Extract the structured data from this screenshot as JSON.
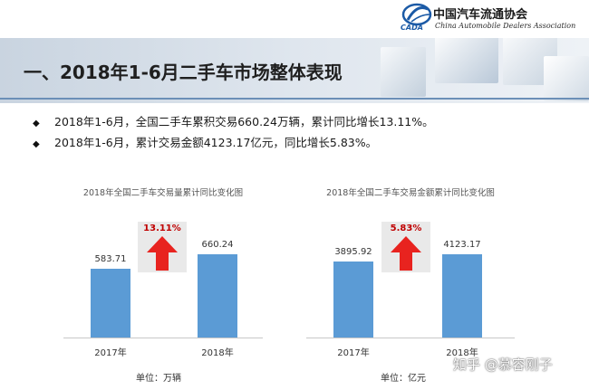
{
  "logo": {
    "name_zh": "中国汽车流通协会",
    "name_en": "China Automobile Dealers Association",
    "mark_text": "CADA"
  },
  "header": {
    "title": "一、2018年1-6月二手车市场整体表现"
  },
  "bullets": [
    "2018年1-6月，全国二手车累积交易660.24万辆，累计同比增长13.11%。",
    "2018年1-6月，累计交易金额4123.17亿元，同比增长5.83%。"
  ],
  "chart_data": [
    {
      "type": "bar",
      "title": "2018年全国二手车交易量累计同比变化图",
      "categories": [
        "2017年",
        "2018年"
      ],
      "values": [
        583.71,
        660.24
      ],
      "value_labels": [
        "583.71",
        "660.24"
      ],
      "growth_label": "13.11%",
      "unit_label": "单位：万辆",
      "bar_color": "#5b9bd5",
      "arrow_color": "#e8231f"
    },
    {
      "type": "bar",
      "title": "2018年全国二手车交易金额累计同比变化图",
      "categories": [
        "2017年",
        "2018年"
      ],
      "values": [
        3895.92,
        4123.17
      ],
      "value_labels": [
        "3895.92",
        "4123.17"
      ],
      "growth_label": "5.83%",
      "unit_label": "单位：亿元",
      "bar_color": "#5b9bd5",
      "arrow_color": "#e8231f"
    }
  ],
  "watermark": "知乎 @慕容刚子"
}
